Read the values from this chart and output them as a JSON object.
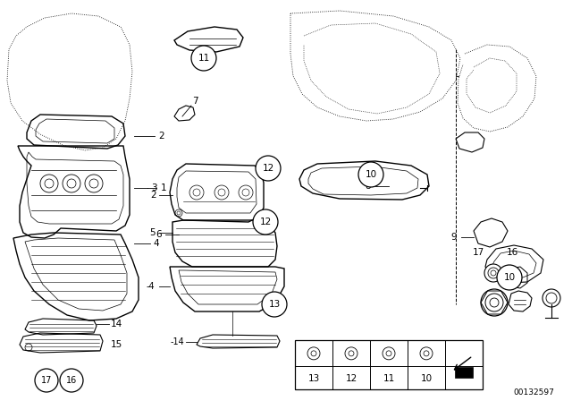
{
  "bg": "#ffffff",
  "lc": "#000000",
  "watermark": "00132597",
  "figsize": [
    6.4,
    4.48
  ],
  "dpi": 100
}
